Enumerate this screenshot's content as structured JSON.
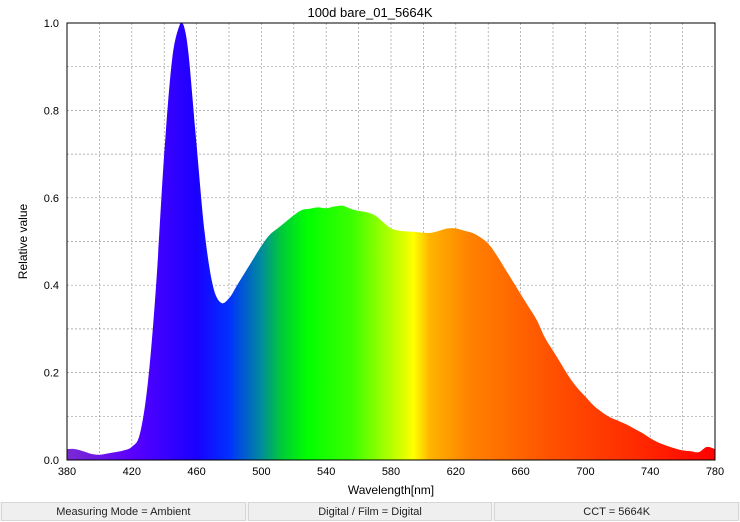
{
  "chart_data": {
    "type": "area",
    "title": "100d bare_01_5664K",
    "xlabel": "Wavelength[nm]",
    "ylabel": "Relative value",
    "xlim": [
      380,
      780
    ],
    "ylim": [
      0,
      1.0
    ],
    "x_ticks": [
      "380",
      "420",
      "460",
      "500",
      "540",
      "580",
      "620",
      "660",
      "700",
      "740",
      "780"
    ],
    "y_ticks": [
      "0.0",
      "0.2",
      "0.4",
      "0.6",
      "0.8",
      "1.0"
    ],
    "grid": true,
    "fill": "visible-spectrum-gradient",
    "x": [
      380,
      385,
      390,
      395,
      400,
      405,
      410,
      415,
      420,
      425,
      430,
      435,
      440,
      445,
      450,
      452,
      455,
      460,
      465,
      470,
      475,
      480,
      485,
      490,
      495,
      500,
      505,
      510,
      515,
      520,
      525,
      530,
      535,
      540,
      545,
      550,
      555,
      560,
      565,
      570,
      575,
      580,
      585,
      590,
      595,
      600,
      605,
      610,
      615,
      620,
      625,
      630,
      635,
      640,
      645,
      650,
      655,
      660,
      665,
      670,
      675,
      680,
      685,
      690,
      695,
      700,
      705,
      710,
      715,
      720,
      725,
      730,
      735,
      740,
      745,
      750,
      755,
      760,
      765,
      770,
      775,
      780
    ],
    "y": [
      0.025,
      0.025,
      0.02,
      0.014,
      0.012,
      0.015,
      0.018,
      0.022,
      0.03,
      0.06,
      0.18,
      0.4,
      0.7,
      0.92,
      1.0,
      0.995,
      0.93,
      0.72,
      0.52,
      0.4,
      0.36,
      0.37,
      0.4,
      0.43,
      0.46,
      0.49,
      0.515,
      0.53,
      0.545,
      0.56,
      0.572,
      0.575,
      0.578,
      0.576,
      0.58,
      0.582,
      0.575,
      0.57,
      0.567,
      0.56,
      0.545,
      0.53,
      0.525,
      0.523,
      0.522,
      0.52,
      0.52,
      0.525,
      0.53,
      0.53,
      0.525,
      0.52,
      0.51,
      0.495,
      0.47,
      0.44,
      0.41,
      0.38,
      0.35,
      0.32,
      0.28,
      0.25,
      0.22,
      0.19,
      0.165,
      0.145,
      0.125,
      0.11,
      0.098,
      0.09,
      0.082,
      0.072,
      0.062,
      0.05,
      0.04,
      0.033,
      0.027,
      0.022,
      0.02,
      0.018,
      0.03,
      0.025
    ]
  },
  "status_bar": {
    "measuring_mode": "Measuring Mode = Ambient",
    "digital_film": "Digital / Film = Digital",
    "cct": "CCT = 5664K"
  }
}
